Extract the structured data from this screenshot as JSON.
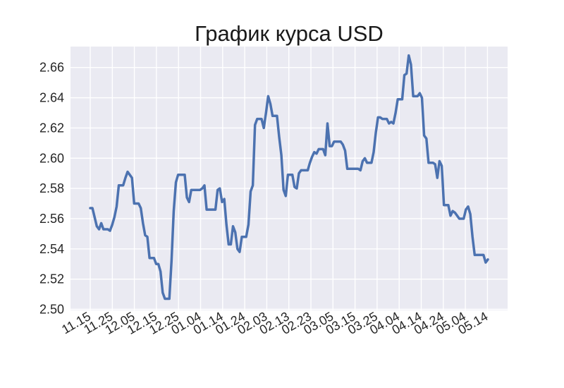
{
  "chart_data": {
    "type": "line",
    "title": "График курса USD",
    "xlabel": "",
    "ylabel": "",
    "ylim": [
      2.5,
      2.672
    ],
    "y_ticks": [
      "2.50",
      "2.52",
      "2.54",
      "2.56",
      "2.58",
      "2.60",
      "2.62",
      "2.64",
      "2.66"
    ],
    "x_ticks": [
      "11.15",
      "11.25",
      "12.05",
      "12.15",
      "12.25",
      "01.04",
      "01.14",
      "01.24",
      "02.03",
      "02.13",
      "02.23",
      "03.05",
      "03.15",
      "03.25",
      "04.04",
      "04.14",
      "04.24",
      "05.04",
      "05.14"
    ],
    "grid": true,
    "series": [
      {
        "name": "USD",
        "color": "#4c72b0",
        "values": [
          2.567,
          2.567,
          2.561,
          2.555,
          2.553,
          2.557,
          2.553,
          2.553,
          2.553,
          2.552,
          2.556,
          2.561,
          2.568,
          2.582,
          2.582,
          2.582,
          2.587,
          2.591,
          2.589,
          2.587,
          2.57,
          2.57,
          2.57,
          2.567,
          2.557,
          2.549,
          2.548,
          2.534,
          2.534,
          2.534,
          2.53,
          2.53,
          2.525,
          2.511,
          2.507,
          2.507,
          2.507,
          2.532,
          2.565,
          2.584,
          2.589,
          2.589,
          2.589,
          2.589,
          2.574,
          2.571,
          2.579,
          2.579,
          2.579,
          2.579,
          2.579,
          2.58,
          2.582,
          2.566,
          2.566,
          2.566,
          2.566,
          2.566,
          2.579,
          2.58,
          2.571,
          2.573,
          2.556,
          2.543,
          2.543,
          2.555,
          2.551,
          2.54,
          2.538,
          2.548,
          2.548,
          2.548,
          2.556,
          2.578,
          2.582,
          2.622,
          2.626,
          2.626,
          2.626,
          2.62,
          2.63,
          2.641,
          2.636,
          2.628,
          2.628,
          2.628,
          2.614,
          2.602,
          2.579,
          2.575,
          2.589,
          2.589,
          2.589,
          2.581,
          2.58,
          2.59,
          2.592,
          2.592,
          2.592,
          2.592,
          2.597,
          2.601,
          2.604,
          2.603,
          2.606,
          2.606,
          2.606,
          2.602,
          2.623,
          2.608,
          2.608,
          2.611,
          2.611,
          2.611,
          2.611,
          2.609,
          2.605,
          2.593,
          2.593,
          2.593,
          2.593,
          2.593,
          2.593,
          2.592,
          2.598,
          2.6,
          2.597,
          2.597,
          2.597,
          2.604,
          2.617,
          2.627,
          2.627,
          2.626,
          2.626,
          2.626,
          2.623,
          2.624,
          2.623,
          2.63,
          2.639,
          2.639,
          2.639,
          2.655,
          2.656,
          2.668,
          2.662,
          2.641,
          2.641,
          2.641,
          2.643,
          2.64,
          2.615,
          2.613,
          2.597,
          2.597,
          2.597,
          2.596,
          2.587,
          2.598,
          2.595,
          2.569,
          2.569,
          2.569,
          2.562,
          2.565,
          2.564,
          2.562,
          2.56,
          2.56,
          2.56,
          2.566,
          2.568,
          2.563,
          2.548,
          2.536,
          2.536,
          2.536,
          2.536,
          2.536,
          2.531,
          2.533
        ]
      }
    ]
  }
}
